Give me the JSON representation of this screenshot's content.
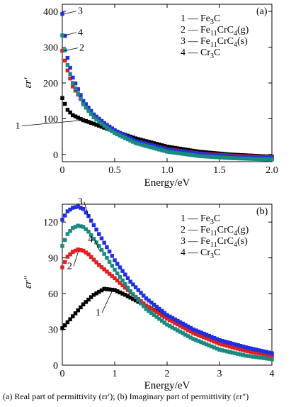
{
  "caption": "(a) Real part of permittivity (εr′); (b) Imaginary part of permittivity (εr″)",
  "chart_data": [
    {
      "panel_label": "(a)",
      "type": "scatter",
      "xlabel": "Energy/eV",
      "ylabel": "εr′",
      "xlim": [
        0,
        2.0
      ],
      "ylim": [
        -20,
        420
      ],
      "xticks": [
        "0",
        "0.5",
        "1.0",
        "1.5",
        "2.0"
      ],
      "xtick_values": [
        0,
        0.5,
        1.0,
        1.5,
        2.0
      ],
      "yticks": [
        "0",
        "100",
        "200",
        "300",
        "400"
      ],
      "ytick_values": [
        0,
        100,
        200,
        300,
        400
      ],
      "legend_position": "top-right",
      "legend": [
        {
          "number": "1",
          "name": "Fe3C",
          "base": "Fe",
          "sub1": "3",
          "mid": "C",
          "sub2": "",
          "tail": ""
        },
        {
          "number": "2",
          "name": "Fe11CrC4(g)",
          "base": "Fe",
          "sub1": "11",
          "mid": "CrC",
          "sub2": "4",
          "tail": "(g)"
        },
        {
          "number": "3",
          "name": "Fe11CrC4(s)",
          "base": "Fe",
          "sub1": "11",
          "mid": "CrC",
          "sub2": "4",
          "tail": "(s)"
        },
        {
          "number": "4",
          "name": "Cr3C",
          "base": "Cr",
          "sub1": "3",
          "mid": "C",
          "sub2": "",
          "tail": ""
        }
      ],
      "series": [
        {
          "label": "1",
          "name": "Fe3C",
          "color": "#000000",
          "x": [
            0.0,
            0.05,
            0.1,
            0.2,
            0.3,
            0.4,
            0.5,
            0.7,
            1.0,
            1.3,
            1.6,
            2.0
          ],
          "y": [
            158,
            125,
            110,
            96,
            86,
            75,
            65,
            45,
            22,
            8,
            0,
            -6
          ]
        },
        {
          "label": "2",
          "name": "Fe11CrC4(g)",
          "color": "#e02020",
          "x": [
            0.0,
            0.05,
            0.1,
            0.2,
            0.3,
            0.4,
            0.5,
            0.7,
            1.0,
            1.3,
            1.6,
            2.0
          ],
          "y": [
            290,
            235,
            190,
            145,
            110,
            85,
            65,
            38,
            15,
            3,
            -3,
            -8
          ]
        },
        {
          "label": "3",
          "name": "Fe11CrC4(s)",
          "color": "#2030e0",
          "x": [
            0.0,
            0.05,
            0.1,
            0.2,
            0.3,
            0.4,
            0.5,
            0.7,
            1.0,
            1.3,
            1.6,
            2.0
          ],
          "y": [
            393,
            270,
            215,
            150,
            112,
            88,
            68,
            38,
            14,
            2,
            -5,
            -10
          ]
        },
        {
          "label": "4",
          "name": "Cr3C",
          "color": "#1a8a80",
          "x": [
            0.0,
            0.05,
            0.1,
            0.2,
            0.3,
            0.4,
            0.5,
            0.7,
            1.0,
            1.3,
            1.6,
            2.0
          ],
          "y": [
            333,
            250,
            200,
            140,
            104,
            80,
            60,
            32,
            8,
            -4,
            -10,
            -14
          ]
        }
      ],
      "curve_labels": [
        {
          "text": "3",
          "series": 2,
          "x": 0.0,
          "y": 393
        },
        {
          "text": "4",
          "series": 3,
          "x": 0.0,
          "y": 333
        },
        {
          "text": "2",
          "series": 1,
          "x": 0.0,
          "y": 290
        },
        {
          "text": "1",
          "series": 0,
          "x": 0.22,
          "y": 96
        }
      ]
    },
    {
      "panel_label": "(b)",
      "type": "scatter",
      "xlabel": "Energy/eV",
      "ylabel": "εr″",
      "xlim": [
        0,
        4
      ],
      "ylim": [
        0,
        135
      ],
      "xticks": [
        "0",
        "1",
        "2",
        "3",
        "4"
      ],
      "xtick_values": [
        0,
        1,
        2,
        3,
        4
      ],
      "yticks": [
        "0",
        "30",
        "60",
        "90",
        "120"
      ],
      "ytick_values": [
        0,
        30,
        60,
        90,
        120
      ],
      "legend_position": "top-right",
      "legend": [
        {
          "number": "1",
          "name": "Fe3C",
          "base": "Fe",
          "sub1": "3",
          "mid": "C",
          "sub2": "",
          "tail": ""
        },
        {
          "number": "2",
          "name": "Fe11CrC4(g)",
          "base": "Fe",
          "sub1": "11",
          "mid": "CrC",
          "sub2": "4",
          "tail": "(g)"
        },
        {
          "number": "3",
          "name": "Fe11CrC4(s)",
          "base": "Fe",
          "sub1": "11",
          "mid": "CrC",
          "sub2": "4",
          "tail": "(s)"
        },
        {
          "number": "4",
          "name": "Cr3C",
          "base": "Cr",
          "sub1": "3",
          "mid": "C",
          "sub2": "",
          "tail": ""
        }
      ],
      "series": [
        {
          "label": "1",
          "name": "Fe3C",
          "color": "#000000",
          "x": [
            0.0,
            0.2,
            0.4,
            0.6,
            0.8,
            1.0,
            1.2,
            1.5,
            2.0,
            2.5,
            3.0,
            3.5,
            4.0
          ],
          "y": [
            31,
            41,
            51,
            59,
            64,
            63,
            59,
            52,
            41,
            29,
            20,
            13,
            8
          ]
        },
        {
          "label": "2",
          "name": "Fe11CrC4(g)",
          "color": "#e02020",
          "x": [
            0.0,
            0.1,
            0.2,
            0.3,
            0.4,
            0.5,
            0.7,
            1.0,
            1.3,
            1.6,
            2.0,
            2.5,
            3.0,
            3.5,
            4.0
          ],
          "y": [
            82,
            91,
            95,
            97,
            96,
            93,
            84,
            73,
            61,
            50,
            39,
            27,
            18,
            12,
            8
          ]
        },
        {
          "label": "3",
          "name": "Fe11CrC4(s)",
          "color": "#2030e0",
          "x": [
            0.0,
            0.1,
            0.2,
            0.3,
            0.4,
            0.5,
            0.7,
            1.0,
            1.3,
            1.6,
            2.0,
            2.5,
            3.0,
            3.5,
            4.0
          ],
          "y": [
            122,
            129,
            132,
            133,
            131,
            125,
            110,
            88,
            70,
            56,
            42,
            30,
            21,
            15,
            10
          ]
        },
        {
          "label": "4",
          "name": "Cr3C",
          "color": "#1a8a80",
          "x": [
            0.0,
            0.1,
            0.2,
            0.3,
            0.4,
            0.5,
            0.7,
            1.0,
            1.3,
            1.6,
            2.0,
            2.5,
            3.0,
            3.5,
            4.0
          ],
          "y": [
            100,
            110,
            115,
            117,
            116,
            112,
            100,
            80,
            62,
            47,
            34,
            22,
            13,
            8,
            5
          ]
        }
      ],
      "curve_labels": [
        {
          "text": "3",
          "series": 2,
          "x": 0.55,
          "y": 124
        },
        {
          "text": "4",
          "series": 3,
          "x": 0.75,
          "y": 96
        },
        {
          "text": "2",
          "series": 1,
          "x": 0.35,
          "y": 96
        },
        {
          "text": "1",
          "series": 0,
          "x": 1.0,
          "y": 63
        }
      ]
    }
  ]
}
